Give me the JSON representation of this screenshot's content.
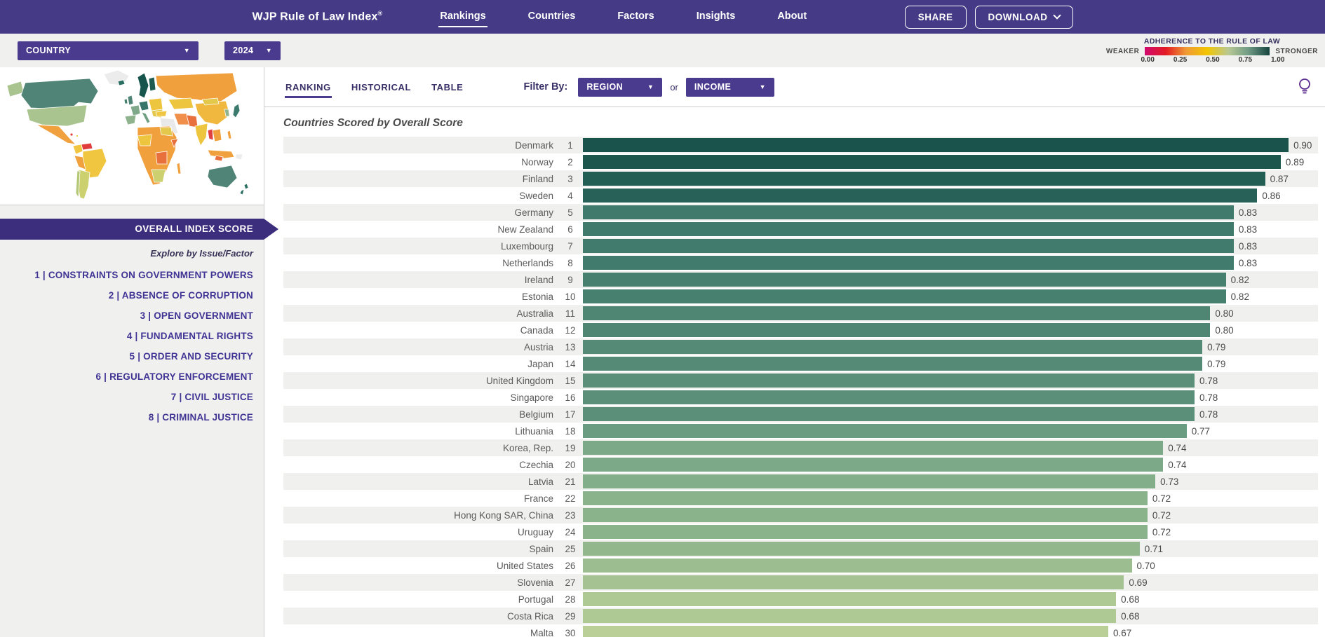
{
  "colors": {
    "nav_purple": "#453a85",
    "control_purple": "#4a3b8f",
    "banner_purple": "#3d2e7d",
    "link_purple": "#3f3494",
    "row_stripe": "#f0f0ef",
    "legend_gradient": [
      "#cf0a6e",
      "#e41b23",
      "#ef9a35",
      "#f2c501",
      "#b8c893",
      "#6f9b85",
      "#15443e"
    ]
  },
  "nav": {
    "brand": "WJP Rule of Law Index",
    "registered": "®",
    "links": [
      "Rankings",
      "Countries",
      "Factors",
      "Insights",
      "About"
    ],
    "active_link": "Rankings",
    "share_label": "SHARE",
    "download_label": "DOWNLOAD"
  },
  "toolbar": {
    "country_dropdown": "COUNTRY",
    "year_dropdown": "2024",
    "legend": {
      "title": "ADHERENCE TO THE RULE OF LAW",
      "weaker": "WEAKER",
      "stronger": "STRONGER",
      "ticks": [
        "0.00",
        "0.25",
        "0.50",
        "0.75",
        "1.00"
      ]
    }
  },
  "sidebar": {
    "overall_banner": "OVERALL INDEX SCORE",
    "explore_label": "Explore by Issue/Factor",
    "factors": [
      "1 | CONSTRAINTS ON GOVERNMENT POWERS",
      "2 | ABSENCE OF CORRUPTION",
      "3 | OPEN GOVERNMENT",
      "4 | FUNDAMENTAL RIGHTS",
      "5 | ORDER AND SECURITY",
      "6 | REGULATORY ENFORCEMENT",
      "7 | CIVIL JUSTICE",
      "8 | CRIMINAL JUSTICE"
    ]
  },
  "main": {
    "tabs": [
      "RANKING",
      "HISTORICAL",
      "TABLE"
    ],
    "active_tab": "RANKING",
    "filter_by_label": "Filter By:",
    "region_dropdown": "REGION",
    "or_label": "or",
    "income_dropdown": "INCOME"
  },
  "chart_data": {
    "type": "bar",
    "title": "Countries Scored by Overall Score",
    "xlabel": "",
    "ylabel": "",
    "xlim": [
      0,
      1
    ],
    "grid": false,
    "legend_position": "none",
    "rows": [
      {
        "rank": 1,
        "country": "Denmark",
        "score": 0.9,
        "color": "#19534b"
      },
      {
        "rank": 2,
        "country": "Norway",
        "score": 0.89,
        "color": "#1c564d"
      },
      {
        "rank": 3,
        "country": "Finland",
        "score": 0.87,
        "color": "#235e55"
      },
      {
        "rank": 4,
        "country": "Sweden",
        "score": 0.86,
        "color": "#276157"
      },
      {
        "rank": 5,
        "country": "Germany",
        "score": 0.83,
        "color": "#3f7a6d"
      },
      {
        "rank": 6,
        "country": "New Zealand",
        "score": 0.83,
        "color": "#3f7a6d"
      },
      {
        "rank": 7,
        "country": "Luxembourg",
        "score": 0.83,
        "color": "#407b6e"
      },
      {
        "rank": 8,
        "country": "Netherlands",
        "score": 0.83,
        "color": "#407b6e"
      },
      {
        "rank": 9,
        "country": "Ireland",
        "score": 0.82,
        "color": "#47806f"
      },
      {
        "rank": 10,
        "country": "Estonia",
        "score": 0.82,
        "color": "#47806f"
      },
      {
        "rank": 11,
        "country": "Australia",
        "score": 0.8,
        "color": "#4f8673"
      },
      {
        "rank": 12,
        "country": "Canada",
        "score": 0.8,
        "color": "#4f8673"
      },
      {
        "rank": 13,
        "country": "Austria",
        "score": 0.79,
        "color": "#558b76"
      },
      {
        "rank": 14,
        "country": "Japan",
        "score": 0.79,
        "color": "#558b76"
      },
      {
        "rank": 15,
        "country": "United Kingdom",
        "score": 0.78,
        "color": "#5b8f79"
      },
      {
        "rank": 16,
        "country": "Singapore",
        "score": 0.78,
        "color": "#5b8f79"
      },
      {
        "rank": 17,
        "country": "Belgium",
        "score": 0.78,
        "color": "#5b8f79"
      },
      {
        "rank": 18,
        "country": "Lithuania",
        "score": 0.77,
        "color": "#699c80"
      },
      {
        "rank": 19,
        "country": "Korea, Rep.",
        "score": 0.74,
        "color": "#7caa88"
      },
      {
        "rank": 20,
        "country": "Czechia",
        "score": 0.74,
        "color": "#7caa88"
      },
      {
        "rank": 21,
        "country": "Latvia",
        "score": 0.73,
        "color": "#83ae8a"
      },
      {
        "rank": 22,
        "country": "France",
        "score": 0.72,
        "color": "#8ab28b"
      },
      {
        "rank": 23,
        "country": "Hong Kong SAR, China",
        "score": 0.72,
        "color": "#8ab28b"
      },
      {
        "rank": 24,
        "country": "Uruguay",
        "score": 0.72,
        "color": "#8ab28b"
      },
      {
        "rank": 25,
        "country": "Spain",
        "score": 0.71,
        "color": "#92b78d"
      },
      {
        "rank": 26,
        "country": "United States",
        "score": 0.7,
        "color": "#9bbd90"
      },
      {
        "rank": 27,
        "country": "Slovenia",
        "score": 0.69,
        "color": "#a4c292"
      },
      {
        "rank": 28,
        "country": "Portugal",
        "score": 0.68,
        "color": "#afc994"
      },
      {
        "rank": 29,
        "country": "Costa Rica",
        "score": 0.68,
        "color": "#afc994"
      },
      {
        "rank": 30,
        "country": "Malta",
        "score": 0.67,
        "color": "#b9cf97"
      }
    ]
  }
}
